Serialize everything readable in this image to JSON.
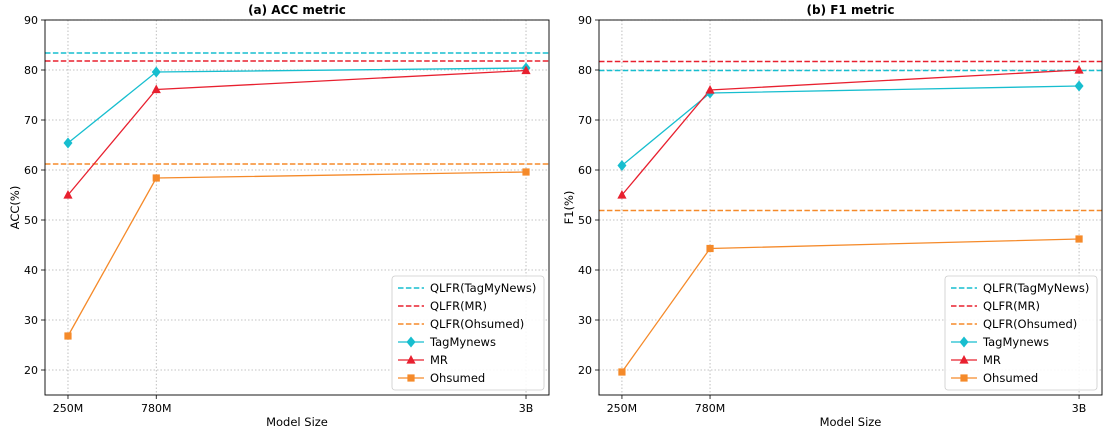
{
  "chart_data": [
    {
      "type": "line",
      "title": "(a) ACC metric",
      "xlabel": "Model Size",
      "ylabel": "ACC(%)",
      "x": [
        250,
        780,
        3000
      ],
      "xticklabels": [
        "250M",
        "780M",
        "3B"
      ],
      "xlim": [
        112,
        3138
      ],
      "ylim": [
        15,
        90
      ],
      "yticks": [
        20,
        30,
        40,
        50,
        60,
        70,
        80,
        90
      ],
      "grid": true,
      "legend_position": "lower right",
      "reference_lines": [
        {
          "name": "QLFR(TagMyNews)",
          "y": 83.4,
          "color": "#17becf",
          "linestyle": "dashed"
        },
        {
          "name": "QLFR(MR)",
          "y": 81.8,
          "color": "#e8202f",
          "linestyle": "dashed"
        },
        {
          "name": "QLFR(Ohsumed)",
          "y": 61.2,
          "color": "#f58a2a",
          "linestyle": "dashed"
        }
      ],
      "series": [
        {
          "name": "TagMynews",
          "values": [
            65.4,
            79.6,
            80.4
          ],
          "color": "#17becf",
          "marker": "diamond"
        },
        {
          "name": "MR",
          "values": [
            55.0,
            76.1,
            79.9
          ],
          "color": "#e8202f",
          "marker": "triangle"
        },
        {
          "name": "Ohsumed",
          "values": [
            26.8,
            58.4,
            59.6
          ],
          "color": "#f58a2a",
          "marker": "square"
        }
      ]
    },
    {
      "type": "line",
      "title": "(b) F1 metric",
      "xlabel": "Model Size",
      "ylabel": "F1(%)",
      "x": [
        250,
        780,
        3000
      ],
      "xticklabels": [
        "250M",
        "780M",
        "3B"
      ],
      "xlim": [
        112,
        3138
      ],
      "ylim": [
        15,
        90
      ],
      "yticks": [
        20,
        30,
        40,
        50,
        60,
        70,
        80,
        90
      ],
      "grid": true,
      "legend_position": "lower right",
      "reference_lines": [
        {
          "name": "QLFR(TagMyNews)",
          "y": 79.9,
          "color": "#17becf",
          "linestyle": "dashed"
        },
        {
          "name": "QLFR(MR)",
          "y": 81.7,
          "color": "#e8202f",
          "linestyle": "dashed"
        },
        {
          "name": "QLFR(Ohsumed)",
          "y": 51.9,
          "color": "#f58a2a",
          "linestyle": "dashed"
        }
      ],
      "series": [
        {
          "name": "TagMynews",
          "values": [
            60.9,
            75.4,
            76.8
          ],
          "color": "#17becf",
          "marker": "diamond"
        },
        {
          "name": "MR",
          "values": [
            55.0,
            76.0,
            80.0
          ],
          "color": "#e8202f",
          "marker": "triangle"
        },
        {
          "name": "Ohsumed",
          "values": [
            19.6,
            44.3,
            46.2
          ],
          "color": "#f58a2a",
          "marker": "square"
        }
      ]
    }
  ]
}
